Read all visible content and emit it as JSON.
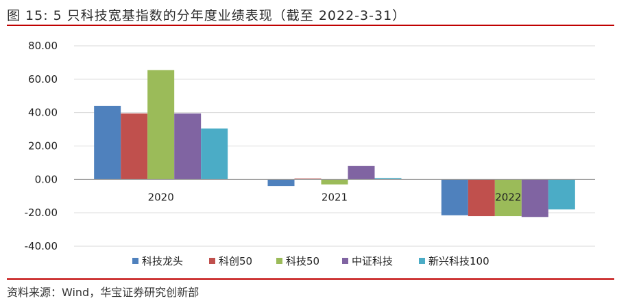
{
  "figure": {
    "title": "图 15:  5 只科技宽基指数的分年度业绩表现（截至 2022-3-31）",
    "source": "资料来源：Wind，华宝证券研究创新部"
  },
  "chart_data": {
    "type": "bar",
    "categories": [
      "2020",
      "2021",
      "2022"
    ],
    "series": [
      {
        "name": "科技龙头",
        "color": "#4f81bd",
        "values": [
          44.0,
          -4.0,
          -21.5
        ]
      },
      {
        "name": "科创50",
        "color": "#c0504d",
        "values": [
          39.5,
          0.5,
          -22.0
        ]
      },
      {
        "name": "科技50",
        "color": "#9bbb59",
        "values": [
          65.5,
          -3.0,
          -22.0
        ]
      },
      {
        "name": "中证科技",
        "color": "#8064a2",
        "values": [
          39.5,
          8.0,
          -22.5
        ]
      },
      {
        "name": "新兴科技100",
        "color": "#4bacc6",
        "values": [
          30.5,
          0.8,
          -18.0
        ]
      }
    ],
    "ylim": [
      -40,
      80
    ],
    "yticks": [
      "80.00",
      "60.00",
      "40.00",
      "20.00",
      "0.00",
      "-20.00",
      "-40.00"
    ],
    "ytick_values": [
      80,
      60,
      40,
      20,
      0,
      -20,
      -40
    ],
    "grid": true,
    "legend_position": "bottom"
  }
}
